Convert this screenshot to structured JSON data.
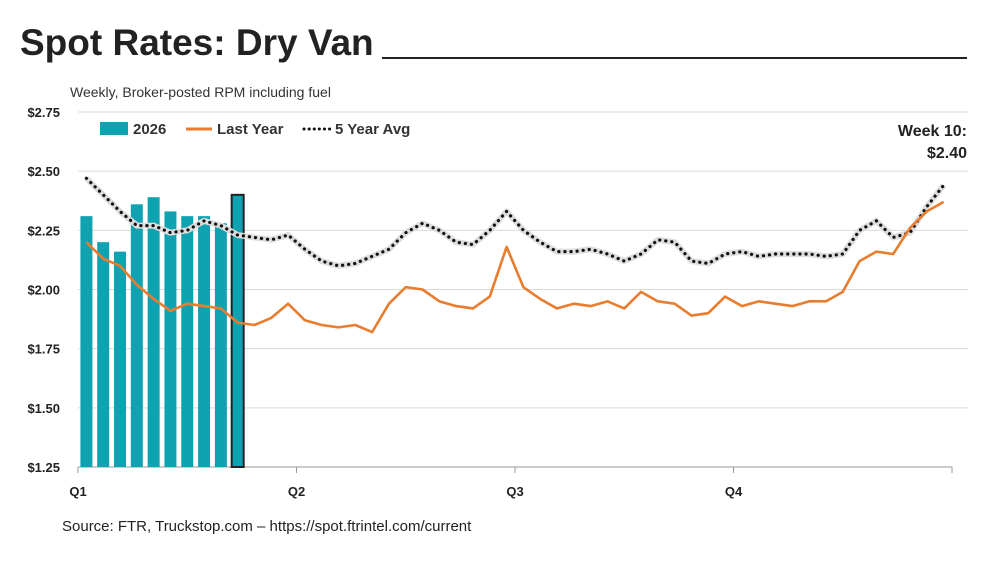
{
  "chart_data": {
    "type": "bar+line",
    "title": "Spot Rates: Dry Van",
    "subtitle": "Weekly, Broker-posted RPM including fuel",
    "source": "Source: FTR, Truckstop.com – https://spot.ftrintel.com/current",
    "annotation": {
      "line1": "Week 10:",
      "line2": "$2.40"
    },
    "ylim": [
      1.25,
      2.75
    ],
    "yticks": [
      1.25,
      1.5,
      1.75,
      2.0,
      2.25,
      2.5,
      2.75
    ],
    "ytick_labels": [
      "$1.25",
      "$1.50",
      "$1.75",
      "$2.00",
      "$2.25",
      "$2.50",
      "$2.75"
    ],
    "xtick_labels": [
      "Q1",
      "Q2",
      "Q3",
      "Q4"
    ],
    "weeks": 52,
    "grid": true,
    "legend_placement": "top-left",
    "series": [
      {
        "name": "2026",
        "kind": "bar",
        "color": "#0fa3b1",
        "values": [
          2.31,
          2.2,
          2.16,
          2.36,
          2.39,
          2.33,
          2.31,
          2.31,
          2.28,
          2.4
        ],
        "highlight_last": true
      },
      {
        "name": "Last Year",
        "kind": "line",
        "color": "#e87d2f",
        "values": [
          2.2,
          2.13,
          2.1,
          2.02,
          1.96,
          1.91,
          1.94,
          1.93,
          1.92,
          1.86,
          1.85,
          1.88,
          1.94,
          1.87,
          1.85,
          1.84,
          1.85,
          1.82,
          1.94,
          2.01,
          2.0,
          1.95,
          1.93,
          1.92,
          1.97,
          2.18,
          2.01,
          1.96,
          1.92,
          1.94,
          1.93,
          1.95,
          1.92,
          1.99,
          1.95,
          1.94,
          1.89,
          1.9,
          1.97,
          1.93,
          1.95,
          1.94,
          1.93,
          1.95,
          1.95,
          1.99,
          2.12,
          2.16,
          2.15,
          2.26,
          2.33,
          2.37
        ]
      },
      {
        "name": "5 Year Avg",
        "kind": "dotted-line",
        "color": "#111111",
        "values": [
          2.47,
          2.4,
          2.33,
          2.27,
          2.27,
          2.24,
          2.25,
          2.29,
          2.27,
          2.23,
          2.22,
          2.21,
          2.23,
          2.17,
          2.12,
          2.1,
          2.11,
          2.14,
          2.17,
          2.24,
          2.28,
          2.25,
          2.2,
          2.19,
          2.25,
          2.33,
          2.25,
          2.2,
          2.16,
          2.16,
          2.17,
          2.15,
          2.12,
          2.15,
          2.21,
          2.2,
          2.12,
          2.11,
          2.15,
          2.16,
          2.14,
          2.15,
          2.15,
          2.15,
          2.14,
          2.15,
          2.25,
          2.29,
          2.22,
          2.24,
          2.35,
          2.44
        ]
      }
    ]
  }
}
